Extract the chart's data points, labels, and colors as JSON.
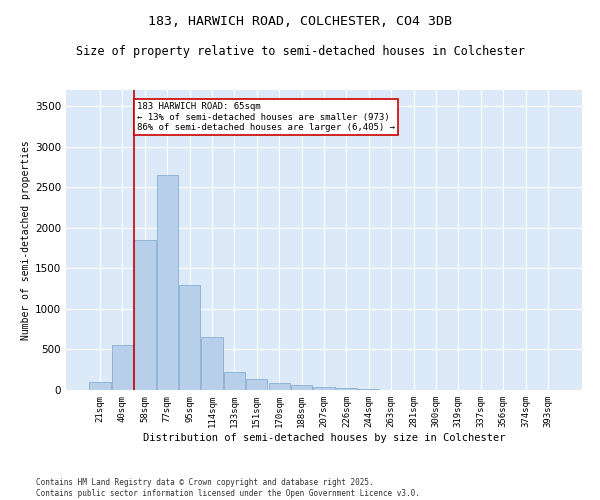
{
  "title1": "183, HARWICH ROAD, COLCHESTER, CO4 3DB",
  "title2": "Size of property relative to semi-detached houses in Colchester",
  "xlabel": "Distribution of semi-detached houses by size in Colchester",
  "ylabel": "Number of semi-detached properties",
  "footnote1": "Contains HM Land Registry data © Crown copyright and database right 2025.",
  "footnote2": "Contains public sector information licensed under the Open Government Licence v3.0.",
  "annotation_line1": "183 HARWICH ROAD: 65sqm",
  "annotation_line2": "← 13% of semi-detached houses are smaller (973)",
  "annotation_line3": "86% of semi-detached houses are larger (6,405) →",
  "bar_color": "#b8cfea",
  "bar_edge_color": "#89afd4",
  "vline_color": "#cc0000",
  "vline_x": 1.5,
  "categories": [
    "21sqm",
    "40sqm",
    "58sqm",
    "77sqm",
    "95sqm",
    "114sqm",
    "133sqm",
    "151sqm",
    "170sqm",
    "188sqm",
    "207sqm",
    "226sqm",
    "244sqm",
    "263sqm",
    "281sqm",
    "300sqm",
    "319sqm",
    "337sqm",
    "356sqm",
    "374sqm",
    "393sqm"
  ],
  "values": [
    100,
    550,
    1850,
    2650,
    1300,
    650,
    225,
    130,
    90,
    65,
    35,
    20,
    10,
    5,
    3,
    2,
    1,
    1,
    0,
    0,
    0
  ],
  "ylim": [
    0,
    3700
  ],
  "yticks": [
    0,
    500,
    1000,
    1500,
    2000,
    2500,
    3000,
    3500
  ],
  "background_color": "#dce9f8",
  "fig_background": "#ffffff",
  "grid_color": "#ffffff",
  "title1_fontsize": 9.5,
  "title2_fontsize": 8.5,
  "xlabel_fontsize": 7.5,
  "ylabel_fontsize": 7,
  "tick_fontsize": 6.5,
  "ytick_fontsize": 7.5,
  "footnote_fontsize": 5.5,
  "annot_fontsize": 6.5
}
